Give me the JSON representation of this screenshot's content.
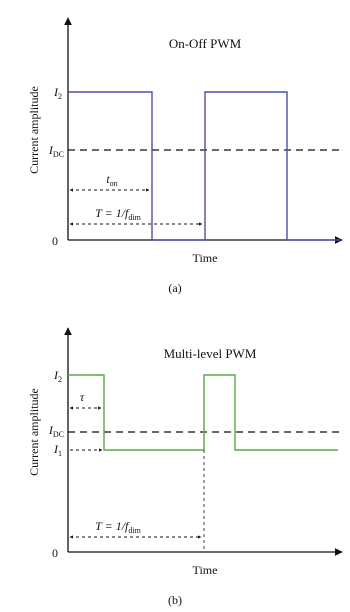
{
  "panel_a": {
    "title": "On-Off PWM",
    "ylabel": "Current amplitude",
    "xlabel": "Time",
    "caption": "(a)",
    "zero_label": "0",
    "level_I2": {
      "base": "I",
      "sub": "2"
    },
    "level_IDC": {
      "base": "I",
      "sub": "DC"
    },
    "ton_label": {
      "base": "t",
      "sub": "on"
    },
    "period_label": {
      "prefix": "T = 1/",
      "base": "f",
      "sub": "dim"
    },
    "colors": {
      "waveform": "#4a4fa8",
      "axis": "#111111"
    }
  },
  "panel_b": {
    "title": "Multi-level PWM",
    "ylabel": "Current amplitude",
    "xlabel": "Time",
    "caption": "(b)",
    "zero_label": "0",
    "level_I2": {
      "base": "I",
      "sub": "2"
    },
    "level_IDC": {
      "base": "I",
      "sub": "DC"
    },
    "level_I1": {
      "base": "I",
      "sub": "1"
    },
    "tau_label": "τ",
    "period_label": {
      "prefix": "T = 1/",
      "base": "f",
      "sub": "dim"
    },
    "colors": {
      "waveform": "#5aa84a",
      "axis": "#111111"
    }
  }
}
